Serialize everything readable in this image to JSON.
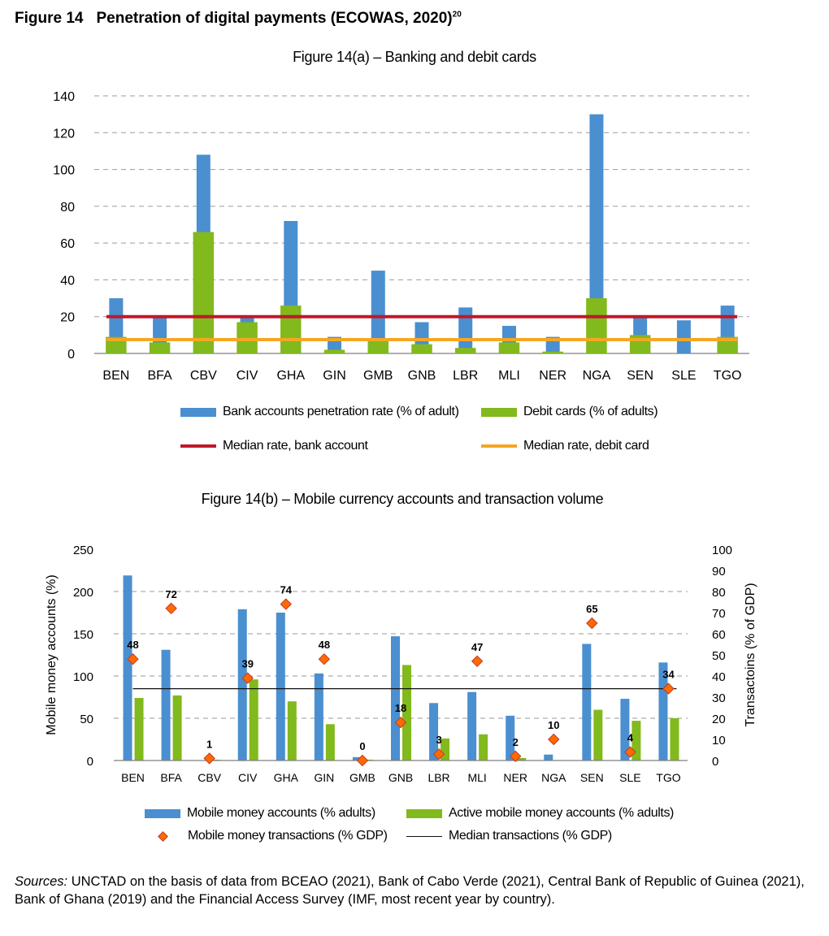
{
  "figure": {
    "number": "Figure 14",
    "title": "Penetration of digital payments (ECOWAS, 2020)",
    "footnote_ref": "20"
  },
  "chart_data": [
    {
      "type": "bar",
      "title": "Figure 14(a) – Banking and debit cards",
      "categories": [
        "BEN",
        "BFA",
        "CBV",
        "CIV",
        "GHA",
        "GIN",
        "GMB",
        "GNB",
        "LBR",
        "MLI",
        "NER",
        "NGA",
        "SEN",
        "SLE",
        "TGO"
      ],
      "ylim": [
        0,
        140
      ],
      "yticks": [
        0,
        20,
        40,
        60,
        80,
        100,
        120,
        140
      ],
      "grid": true,
      "series": [
        {
          "name": "Bank accounts penetration rate (% of adult)",
          "type": "bar",
          "color": "#4a8fd0",
          "values": [
            30,
            20,
            108,
            20,
            72,
            9,
            45,
            17,
            25,
            15,
            9,
            130,
            20,
            18,
            26
          ]
        },
        {
          "name": "Debit cards (% of adults)",
          "type": "bar",
          "color": "#82b91c",
          "values": [
            9,
            6,
            66,
            17,
            26,
            2,
            8,
            5,
            3,
            6,
            1,
            30,
            10,
            0,
            9
          ]
        }
      ],
      "reference_lines": [
        {
          "name": "Median rate, bank account",
          "value": 20,
          "color": "#c0182a"
        },
        {
          "name": "Median rate, debit card",
          "value": 7.5,
          "color": "#f5a623"
        }
      ],
      "legend_position": "bottom"
    },
    {
      "type": "bar",
      "title": "Figure 14(b) – Mobile currency accounts and transaction volume",
      "categories": [
        "BEN",
        "BFA",
        "CBV",
        "CIV",
        "GHA",
        "GIN",
        "GMB",
        "GNB",
        "LBR",
        "MLI",
        "NER",
        "NGA",
        "SEN",
        "SLE",
        "TGO"
      ],
      "ylabel": "Mobile money accounts (%)",
      "ylim": [
        0,
        250
      ],
      "yticks": [
        0,
        50,
        100,
        150,
        200,
        250
      ],
      "y2label": "Transactoins (% of GDP)",
      "y2lim": [
        0,
        100
      ],
      "y2ticks": [
        0,
        10,
        20,
        30,
        40,
        50,
        60,
        70,
        80,
        90,
        100
      ],
      "grid": true,
      "series": [
        {
          "name": "Mobile money accounts (% adults)",
          "type": "bar",
          "axis": "left",
          "color": "#4a8fd0",
          "values": [
            219,
            131,
            0,
            179,
            175,
            103,
            4,
            147,
            68,
            81,
            53,
            7,
            138,
            73,
            116
          ]
        },
        {
          "name": "Active mobile money accounts (% adults)",
          "type": "bar",
          "axis": "left",
          "color": "#82b91c",
          "values": [
            74,
            77,
            1,
            96,
            70,
            43,
            1,
            113,
            26,
            31,
            3,
            0,
            60,
            47,
            50
          ]
        },
        {
          "name": "Mobile money transactions (% GDP)",
          "type": "scatter",
          "axis": "right",
          "color": "#ff6a00",
          "values": [
            48,
            72,
            1,
            39,
            74,
            48,
            0,
            18,
            3,
            47,
            2,
            10,
            65,
            4,
            34
          ],
          "labels": [
            "48",
            "72",
            "1",
            "39",
            "74",
            "48",
            "0",
            "18",
            "3",
            "47",
            "2",
            "10",
            "65",
            "4",
            "34"
          ]
        }
      ],
      "reference_lines": [
        {
          "name": "Median transactions (% GDP)",
          "value": 34,
          "axis": "right",
          "color": "#111111"
        }
      ],
      "legend_position": "bottom"
    }
  ],
  "legend_a": {
    "bank": "Bank accounts penetration rate (% of adult)",
    "debit": "Debit cards (% of adults)",
    "median_bank": "Median rate, bank account",
    "median_debit": "Median rate, debit card"
  },
  "legend_b": {
    "accounts": "Mobile money accounts (% adults)",
    "active": "Active mobile money accounts (% adults)",
    "transactions": "Mobile money transactions (% GDP)",
    "median": "Median transactions (% GDP)"
  },
  "sources": {
    "label": "Sources:",
    "text": " UNCTAD on the basis of data from BCEAO (2021), Bank of Cabo Verde (2021), Central Bank of Republic of Guinea (2021), Bank of Ghana (2019) and the Financial Access Survey (IMF, most recent year by country)."
  }
}
